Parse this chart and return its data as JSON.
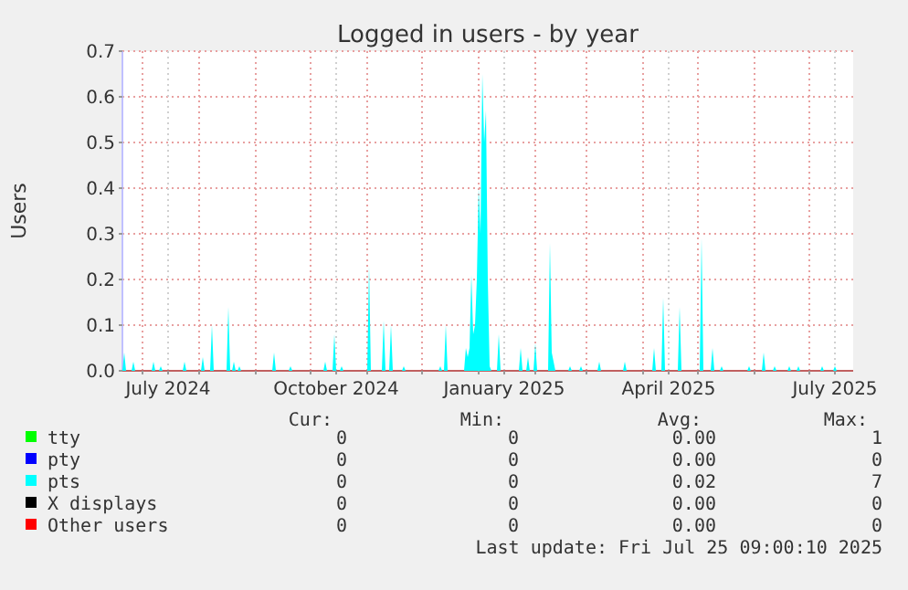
{
  "chart_data": {
    "type": "area",
    "title": "Logged in users - by year",
    "ylabel": "Users",
    "xlim": [
      "2024-06-20",
      "2025-07-25"
    ],
    "xticks": [
      {
        "value": "2024-07-01",
        "label": null
      },
      {
        "value": "2024-07-15",
        "label": "July 2024"
      },
      {
        "value": "2024-08-01",
        "label": null
      },
      {
        "value": "2024-09-01",
        "label": null
      },
      {
        "value": "2024-10-01",
        "label": null
      },
      {
        "value": "2024-10-15",
        "label": "October 2024"
      },
      {
        "value": "2024-11-01",
        "label": null
      },
      {
        "value": "2024-12-01",
        "label": null
      },
      {
        "value": "2025-01-01",
        "label": null
      },
      {
        "value": "2025-01-15",
        "label": "January 2025"
      },
      {
        "value": "2025-02-01",
        "label": null
      },
      {
        "value": "2025-03-01",
        "label": null
      },
      {
        "value": "2025-04-01",
        "label": null
      },
      {
        "value": "2025-04-15",
        "label": "April 2025"
      },
      {
        "value": "2025-05-01",
        "label": null
      },
      {
        "value": "2025-06-01",
        "label": null
      },
      {
        "value": "2025-07-01",
        "label": null
      },
      {
        "value": "2025-07-15",
        "label": "July 2025"
      }
    ],
    "ylim": [
      0,
      0.7
    ],
    "yticks": [
      {
        "value": 0,
        "label": "0.0"
      },
      0.1,
      0.2,
      0.3,
      0.4,
      0.5,
      0.6,
      0.7
    ],
    "grid": true,
    "legend": "bottom left",
    "series": [
      {
        "name": "tty",
        "color": "#00ff00"
      },
      {
        "name": "pty",
        "color": "#0000ff"
      },
      {
        "name": "pts",
        "color": "#00ffff",
        "x": [
          "2024-06-20",
          "2024-06-21",
          "2024-06-22",
          "2024-06-25",
          "2024-06-26",
          "2024-06-27",
          "2024-07-06",
          "2024-07-07",
          "2024-07-08",
          "2024-07-10",
          "2024-07-11",
          "2024-07-12",
          "2024-07-23",
          "2024-07-24",
          "2024-07-25",
          "2024-08-02",
          "2024-08-03",
          "2024-08-04",
          "2024-08-07",
          "2024-08-08",
          "2024-08-09",
          "2024-08-16",
          "2024-08-17",
          "2024-08-18",
          "2024-08-19",
          "2024-08-20",
          "2024-08-21",
          "2024-08-22",
          "2024-08-23",
          "2024-08-24",
          "2024-09-10",
          "2024-09-11",
          "2024-09-12",
          "2024-09-19",
          "2024-09-20",
          "2024-09-21",
          "2024-10-08",
          "2024-10-09",
          "2024-10-10",
          "2024-10-13",
          "2024-10-14",
          "2024-10-15",
          "2024-10-17",
          "2024-10-18",
          "2024-10-19",
          "2024-11-01",
          "2024-11-02",
          "2024-11-03",
          "2024-11-09",
          "2024-11-10",
          "2024-11-11",
          "2024-11-13",
          "2024-11-14",
          "2024-11-15",
          "2024-11-20",
          "2024-11-21",
          "2024-11-22",
          "2024-12-10",
          "2024-12-11",
          "2024-12-12",
          "2024-12-13",
          "2024-12-14",
          "2024-12-15",
          "2024-12-24",
          "2024-12-25",
          "2024-12-26",
          "2024-12-27",
          "2024-12-28",
          "2024-12-29",
          "2024-12-30",
          "2024-12-31",
          "2025-01-01",
          "2025-01-02",
          "2025-01-03",
          "2025-01-04",
          "2025-01-05",
          "2025-01-06",
          "2025-01-07",
          "2025-01-08",
          "2025-01-11",
          "2025-01-12",
          "2025-01-13",
          "2025-01-23",
          "2025-01-24",
          "2025-01-25",
          "2025-01-27",
          "2025-01-28",
          "2025-01-29",
          "2025-01-31",
          "2025-02-01",
          "2025-02-02",
          "2025-02-08",
          "2025-02-09",
          "2025-02-10",
          "2025-02-11",
          "2025-02-12",
          "2025-02-19",
          "2025-02-20",
          "2025-02-21",
          "2025-02-25",
          "2025-02-26",
          "2025-02-27",
          "2025-03-07",
          "2025-03-08",
          "2025-03-09",
          "2025-03-21",
          "2025-03-22",
          "2025-03-23",
          "2025-04-06",
          "2025-04-07",
          "2025-04-08",
          "2025-04-11",
          "2025-04-12",
          "2025-04-13",
          "2025-04-20",
          "2025-04-21",
          "2025-04-22",
          "2025-05-02",
          "2025-05-03",
          "2025-05-04",
          "2025-05-08",
          "2025-05-09",
          "2025-05-10",
          "2025-05-13",
          "2025-05-14",
          "2025-05-15",
          "2025-05-28",
          "2025-05-29",
          "2025-05-30",
          "2025-06-05",
          "2025-06-06",
          "2025-06-07",
          "2025-06-11",
          "2025-06-12",
          "2025-06-13",
          "2025-06-19",
          "2025-06-20",
          "2025-06-21",
          "2025-06-24",
          "2025-06-25",
          "2025-06-26",
          "2025-07-07",
          "2025-07-08",
          "2025-07-09",
          "2025-07-14",
          "2025-07-15",
          "2025-07-16",
          "2025-07-25"
        ],
        "values": [
          0,
          0.04,
          0,
          0,
          0.02,
          0,
          0,
          0.02,
          0,
          0,
          0.01,
          0,
          0,
          0.02,
          0,
          0,
          0.03,
          0,
          0,
          0.1,
          0,
          0,
          0.14,
          0,
          0,
          0.02,
          0,
          0,
          0.01,
          0,
          0,
          0.04,
          0,
          0,
          0.01,
          0,
          0,
          0.02,
          0,
          0,
          0.08,
          0,
          0,
          0.01,
          0,
          0,
          0.23,
          0,
          0,
          0.11,
          0,
          0,
          0.1,
          0,
          0,
          0.01,
          0,
          0,
          0.01,
          0,
          0,
          0.1,
          0,
          0,
          0.05,
          0.03,
          0.05,
          0.21,
          0.08,
          0.1,
          0.2,
          0.4,
          0.3,
          0.65,
          0.5,
          0.57,
          0.2,
          0.01,
          0,
          0,
          0.08,
          0,
          0,
          0.05,
          0,
          0,
          0.03,
          0,
          0,
          0.06,
          0,
          0,
          0.28,
          0.04,
          0.02,
          0,
          0,
          0.01,
          0,
          0,
          0.01,
          0,
          0,
          0.02,
          0,
          0,
          0.02,
          0,
          0,
          0.05,
          0,
          0,
          0.16,
          0,
          0,
          0.14,
          0,
          0,
          0.29,
          0,
          0,
          0.05,
          0,
          0,
          0.01,
          0,
          0,
          0.01,
          0,
          0,
          0.04,
          0,
          0,
          0.01,
          0,
          0,
          0.01,
          0,
          0,
          0.01,
          0,
          0,
          0.01,
          0,
          0,
          0.01,
          0,
          0
        ]
      },
      {
        "name": "X displays",
        "color": "#000000"
      },
      {
        "name": "Other users",
        "color": "#ff0000"
      }
    ],
    "annotations": [
      "Cur:",
      "Min:",
      "Avg:",
      "Max:",
      "0",
      "0",
      "0.00",
      "1",
      "0",
      "0",
      "0.00",
      "0",
      "0",
      "0",
      "0.02",
      "7",
      "0",
      "0",
      "0.00",
      "0",
      "0",
      "0",
      "0.00",
      "0",
      "Last update: Fri Jul 25 09:00:10 2025"
    ]
  }
}
